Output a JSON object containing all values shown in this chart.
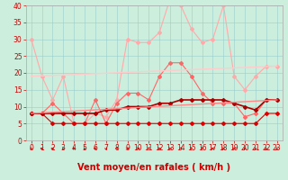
{
  "xlabel": "Vent moyen/en rafales ( km/h )",
  "xlim": [
    -0.5,
    23.5
  ],
  "ylim": [
    0,
    40
  ],
  "yticks": [
    0,
    5,
    10,
    15,
    20,
    25,
    30,
    35,
    40
  ],
  "xticks": [
    0,
    1,
    2,
    3,
    4,
    5,
    6,
    7,
    8,
    9,
    10,
    11,
    12,
    13,
    14,
    15,
    16,
    17,
    18,
    19,
    20,
    21,
    22,
    23
  ],
  "background_color": "#cceedd",
  "grid_color": "#99cccc",
  "series": [
    {
      "x": [
        0,
        1,
        2,
        3,
        4,
        5,
        6,
        7,
        8,
        9,
        10,
        11,
        12,
        13,
        14,
        15,
        16,
        17,
        18,
        19,
        20,
        21,
        22,
        23
      ],
      "y": [
        30,
        19,
        12,
        19,
        5,
        5,
        8,
        7,
        12,
        30,
        29,
        29,
        32,
        42,
        40,
        33,
        29,
        30,
        40,
        19,
        15,
        19,
        22,
        22
      ],
      "color": "#ffaaaa",
      "linewidth": 0.8,
      "marker": "D",
      "markersize": 2.0
    },
    {
      "x": [
        0,
        1,
        2,
        3,
        4,
        5,
        6,
        7,
        8,
        9,
        10,
        11,
        12,
        13,
        14,
        15,
        16,
        17,
        18,
        19,
        20,
        21,
        22,
        23
      ],
      "y": [
        8,
        8,
        11,
        8,
        5,
        5,
        12,
        5,
        11,
        14,
        14,
        12,
        19,
        23,
        23,
        19,
        14,
        11,
        11,
        11,
        7,
        8,
        12,
        12
      ],
      "color": "#ff6666",
      "linewidth": 0.8,
      "marker": "D",
      "markersize": 2.0
    },
    {
      "x": [
        0,
        1,
        2,
        3,
        4,
        5,
        6,
        7,
        8,
        9,
        10,
        11,
        12,
        13,
        14,
        15,
        16,
        17,
        18,
        19,
        20,
        21,
        22,
        23
      ],
      "y": [
        8,
        8,
        5,
        5,
        5,
        5,
        5,
        5,
        5,
        5,
        5,
        5,
        5,
        5,
        5,
        5,
        5,
        5,
        5,
        5,
        5,
        5,
        8,
        8
      ],
      "color": "#dd0000",
      "linewidth": 0.8,
      "marker": "D",
      "markersize": 2.0
    },
    {
      "x": [
        0,
        1,
        2,
        3,
        4,
        5,
        6,
        7,
        8,
        9,
        10,
        11,
        12,
        13,
        14,
        15,
        16,
        17,
        18,
        19,
        20,
        21,
        22,
        23
      ],
      "y": [
        8,
        8,
        8,
        8,
        8,
        8,
        8,
        9,
        9,
        10,
        10,
        10,
        11,
        11,
        12,
        12,
        12,
        12,
        12,
        11,
        10,
        9,
        12,
        12
      ],
      "color": "#aa0000",
      "linewidth": 1.2,
      "marker": "D",
      "markersize": 2.0
    },
    {
      "x": [
        0,
        23
      ],
      "y": [
        19,
        22
      ],
      "color": "#ffcccc",
      "linewidth": 1.0,
      "marker": null,
      "markersize": 0
    },
    {
      "x": [
        0,
        23
      ],
      "y": [
        8,
        12
      ],
      "color": "#ff8888",
      "linewidth": 1.0,
      "marker": null,
      "markersize": 0
    }
  ],
  "xlabel_fontsize": 7,
  "tick_fontsize": 5.5
}
